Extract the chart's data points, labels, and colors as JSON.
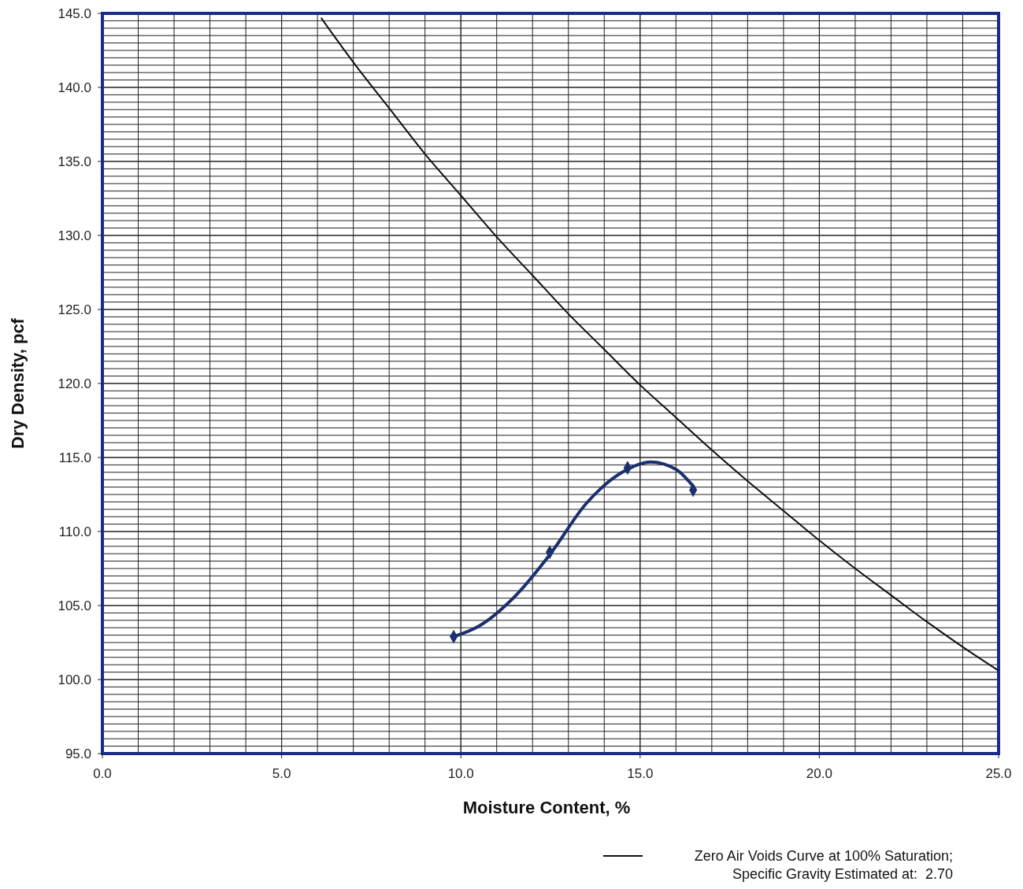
{
  "chart_data": {
    "type": "line",
    "xlabel": "Moisture Content, %",
    "ylabel": "Dry Density, pcf",
    "xlim": [
      0,
      25
    ],
    "ylim": [
      95,
      145
    ],
    "xticks": [
      {
        "value": 0,
        "label": "0.0"
      },
      {
        "value": 5,
        "label": "5.0"
      },
      {
        "value": 10,
        "label": "10.0"
      },
      {
        "value": 15,
        "label": "15.0"
      },
      {
        "value": 20,
        "label": "20.0"
      },
      {
        "value": 25,
        "label": "25.0"
      }
    ],
    "yticks": [
      {
        "value": 95,
        "label": "95.0"
      },
      {
        "value": 100,
        "label": "100.0"
      },
      {
        "value": 105,
        "label": "105.0"
      },
      {
        "value": 110,
        "label": "110.0"
      },
      {
        "value": 115,
        "label": "115.0"
      },
      {
        "value": 120,
        "label": "120.0"
      },
      {
        "value": 125,
        "label": "125.0"
      },
      {
        "value": 130,
        "label": "130.0"
      },
      {
        "value": 135,
        "label": "135.0"
      },
      {
        "value": 140,
        "label": "140.0"
      },
      {
        "value": 145,
        "label": "145.0"
      }
    ],
    "grid": true,
    "legend": "bottom right",
    "series": [
      {
        "name": "Zero Air Voids Curve at 100% Saturation; Specific Gravity Estimated at:  2.70",
        "color": "#111111",
        "marker": "none",
        "x": [
          6.1,
          7,
          8,
          9,
          10,
          11,
          12,
          13,
          14,
          15,
          16,
          17,
          18,
          19,
          20,
          21,
          22,
          23,
          24,
          25
        ],
        "values": [
          144.7,
          141.7,
          138.6,
          135.5,
          132.7,
          129.9,
          127.3,
          124.7,
          122.3,
          119.9,
          117.7,
          115.5,
          113.4,
          111.4,
          109.4,
          107.5,
          105.7,
          103.9,
          102.2,
          100.6
        ]
      },
      {
        "color": "#1c2f6e",
        "marker": "none",
        "x": [
          9.8,
          10.5,
          11.5,
          12.5,
          13.5,
          14.5,
          15.3,
          16.0,
          16.5
        ],
        "values": [
          102.9,
          103.6,
          105.6,
          108.5,
          111.9,
          114.0,
          114.7,
          114.2,
          113.0
        ]
      },
      {
        "type": "scatter",
        "color": "#1c2f6e",
        "marker": "diamond",
        "x": [
          9.8,
          12.48,
          14.65,
          16.48
        ],
        "values": [
          102.9,
          108.6,
          114.3,
          112.8
        ]
      }
    ]
  }
}
